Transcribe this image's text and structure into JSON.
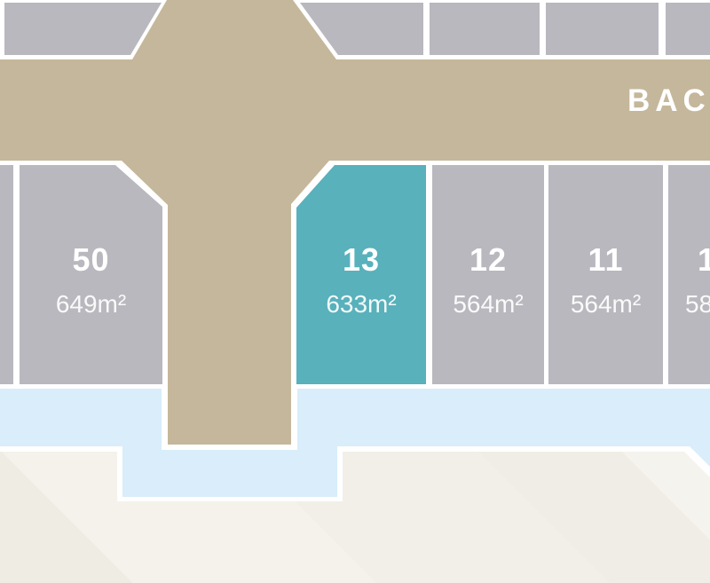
{
  "map": {
    "road_label": "BAC",
    "colors": {
      "road": "#c5b79b",
      "lot": "#b9b8be",
      "lot_selected": "#58b1bb",
      "water": "#d9edfa",
      "land": "#f3f0ea",
      "boundary": "#ffffff",
      "label_text": "#ffffff"
    },
    "lots": [
      {
        "number": "50",
        "area": "649m²",
        "selected": false
      },
      {
        "number": "13",
        "area": "633m²",
        "selected": true
      },
      {
        "number": "12",
        "area": "564m²",
        "selected": false
      },
      {
        "number": "11",
        "area": "564m²",
        "selected": false
      },
      {
        "number": "1",
        "area": "58",
        "selected": false
      }
    ]
  }
}
